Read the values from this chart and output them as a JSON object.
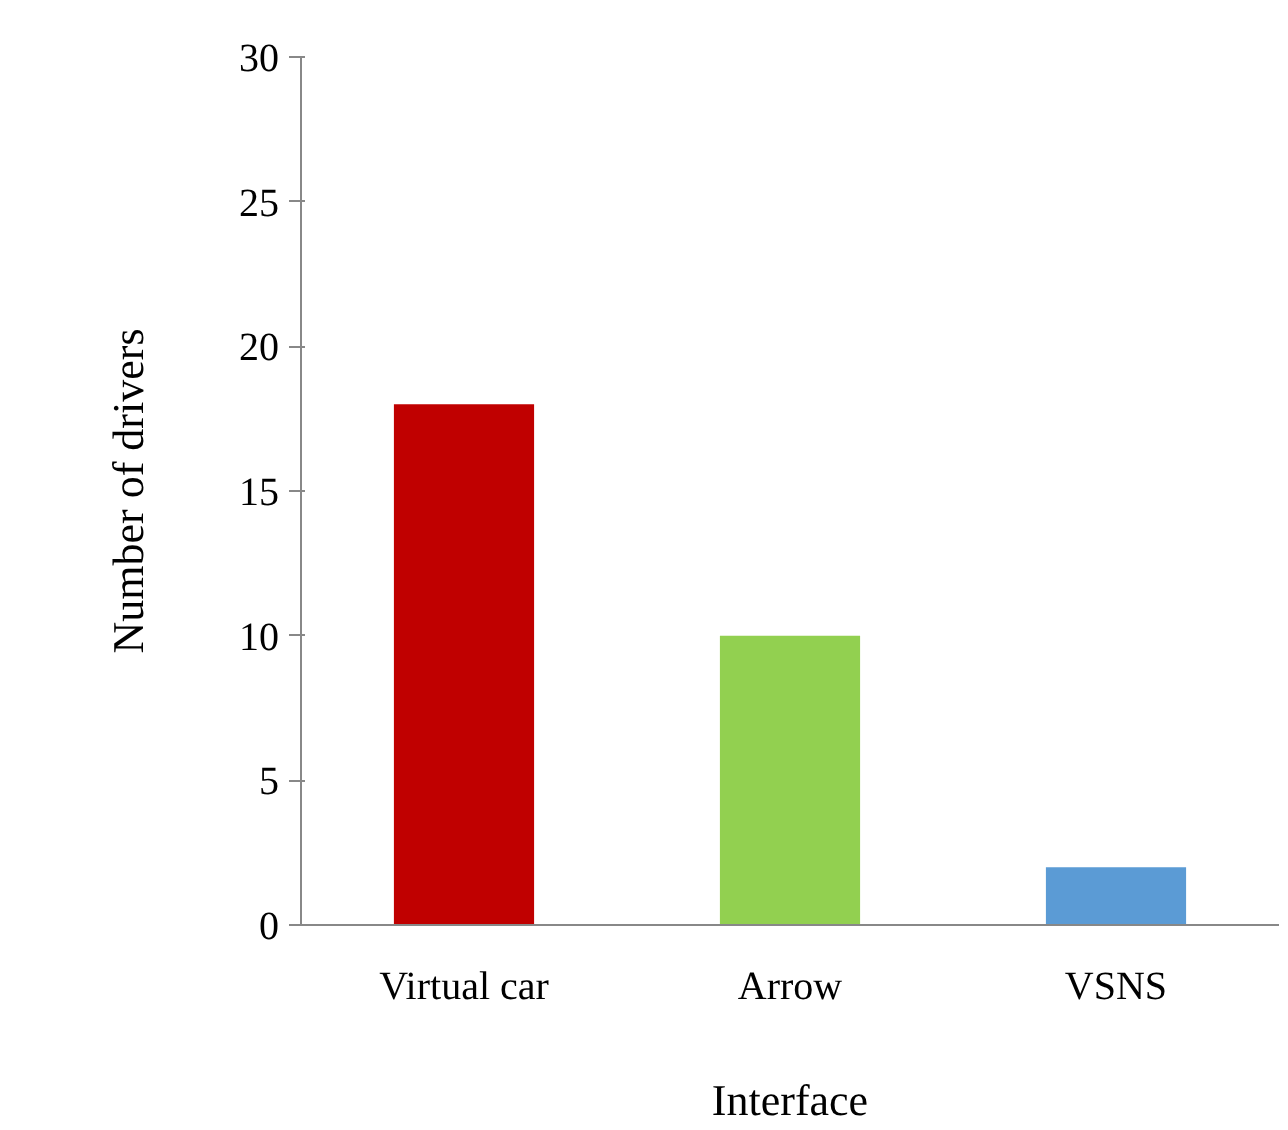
{
  "chart_data": {
    "type": "bar",
    "categories": [
      "Virtual car",
      "Arrow",
      "VSNS"
    ],
    "values": [
      18,
      10,
      2
    ],
    "colors": [
      "#c00000",
      "#92d050",
      "#5b9bd5"
    ],
    "xlabel": "Interface",
    "ylabel": "Number of drivers",
    "ylim": [
      0,
      30
    ],
    "yticks": [
      0,
      5,
      10,
      15,
      20,
      25,
      30
    ],
    "grid": false
  }
}
